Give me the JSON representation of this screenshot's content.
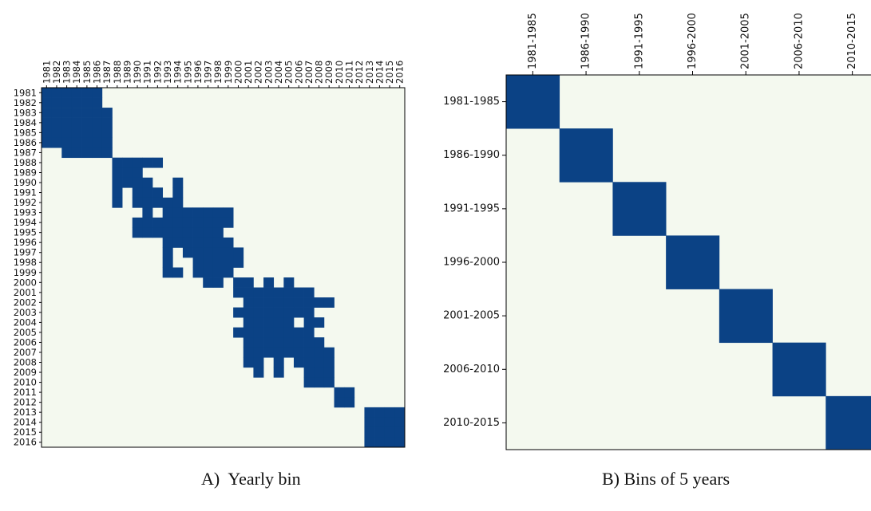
{
  "colors": {
    "background": "#f4f9ef",
    "cell": "#0b4285",
    "axis": "#000000"
  },
  "chart_data": [
    {
      "type": "heatmap",
      "title": "",
      "xlabel": "",
      "ylabel": "",
      "x_labels": [
        "1981",
        "1982",
        "1983",
        "1984",
        "1985",
        "1986",
        "1987",
        "1988",
        "1989",
        "1990",
        "1991",
        "1992",
        "1993",
        "1994",
        "1995",
        "1996",
        "1997",
        "1998",
        "1999",
        "2000",
        "2001",
        "2002",
        "2003",
        "2004",
        "2005",
        "2006",
        "2007",
        "2008",
        "2009",
        "2010",
        "2011",
        "2012",
        "2013",
        "2014",
        "2015",
        "2016"
      ],
      "y_labels": [
        "1981",
        "1982",
        "1983",
        "1984",
        "1985",
        "1986",
        "1987",
        "1988",
        "1989",
        "1990",
        "1991",
        "1992",
        "1993",
        "1994",
        "1995",
        "1996",
        "1997",
        "1998",
        "1999",
        "2000",
        "2001",
        "2002",
        "2003",
        "2004",
        "2005",
        "2006",
        "2007",
        "2008",
        "2009",
        "2010",
        "2011",
        "2012",
        "2013",
        "2014",
        "2015",
        "2016"
      ],
      "value_scale": "1 = dark blue cell (high), 0 = light background (low)",
      "highlighted_cells_by_row": [
        [
          0,
          1,
          2,
          3,
          4,
          5
        ],
        [
          0,
          1,
          2,
          3,
          4,
          5
        ],
        [
          0,
          1,
          2,
          3,
          4,
          5,
          6
        ],
        [
          0,
          1,
          2,
          3,
          4,
          5,
          6
        ],
        [
          0,
          1,
          2,
          3,
          4,
          5,
          6
        ],
        [
          0,
          1,
          2,
          3,
          4,
          5,
          6
        ],
        [
          2,
          3,
          4,
          5,
          6
        ],
        [
          7,
          8,
          9,
          10,
          11
        ],
        [
          7,
          8,
          9
        ],
        [
          7,
          8,
          9,
          10,
          13
        ],
        [
          7,
          9,
          10,
          11,
          13
        ],
        [
          7,
          9,
          10,
          11,
          12,
          13
        ],
        [
          10,
          12,
          13,
          14,
          15,
          16,
          17,
          18
        ],
        [
          9,
          10,
          11,
          12,
          13,
          14,
          15,
          16,
          17,
          18
        ],
        [
          9,
          10,
          11,
          12,
          13,
          14,
          15,
          16,
          17
        ],
        [
          12,
          13,
          14,
          15,
          16,
          17,
          18
        ],
        [
          12,
          14,
          15,
          16,
          17,
          18,
          19
        ],
        [
          12,
          15,
          16,
          17,
          18,
          19
        ],
        [
          12,
          13,
          15,
          16,
          17,
          18
        ],
        [
          16,
          17,
          19,
          20,
          22,
          24
        ],
        [
          19,
          20,
          21,
          22,
          23,
          24,
          25,
          26
        ],
        [
          20,
          21,
          22,
          23,
          24,
          25,
          26,
          27,
          28
        ],
        [
          19,
          20,
          21,
          22,
          23,
          24,
          25,
          26
        ],
        [
          20,
          21,
          22,
          23,
          24,
          26,
          27
        ],
        [
          19,
          20,
          21,
          22,
          23,
          24,
          25,
          26
        ],
        [
          20,
          21,
          22,
          23,
          24,
          25,
          26,
          27
        ],
        [
          20,
          21,
          22,
          23,
          24,
          25,
          26,
          27,
          28
        ],
        [
          20,
          21,
          23,
          25,
          26,
          27,
          28
        ],
        [
          21,
          23,
          26,
          27,
          28
        ],
        [
          26,
          27,
          28
        ],
        [
          29,
          30
        ],
        [
          29,
          30
        ],
        [
          32,
          33,
          34,
          35
        ],
        [
          32,
          33,
          34,
          35
        ],
        [
          32,
          33,
          34,
          35
        ],
        [
          32,
          33,
          34,
          35
        ]
      ]
    },
    {
      "type": "heatmap",
      "title": "",
      "xlabel": "",
      "ylabel": "",
      "x_labels": [
        "1981-1985",
        "1986-1990",
        "1991-1995",
        "1996-2000",
        "2001-2005",
        "2006-2010",
        "2010-2015"
      ],
      "y_labels": [
        "1981-1985",
        "1986-1990",
        "1991-1995",
        "1996-2000",
        "2001-2005",
        "2006-2010",
        "2010-2015"
      ],
      "value_scale": "1 = dark blue cell (high), 0 = light background (low)",
      "highlighted_cells_by_row": [
        [
          0
        ],
        [
          1
        ],
        [
          2
        ],
        [
          3
        ],
        [
          4
        ],
        [
          5
        ],
        [
          6
        ]
      ]
    }
  ],
  "captions": {
    "a": "A)  Yearly bin",
    "b": "B) Bins of 5 years"
  }
}
